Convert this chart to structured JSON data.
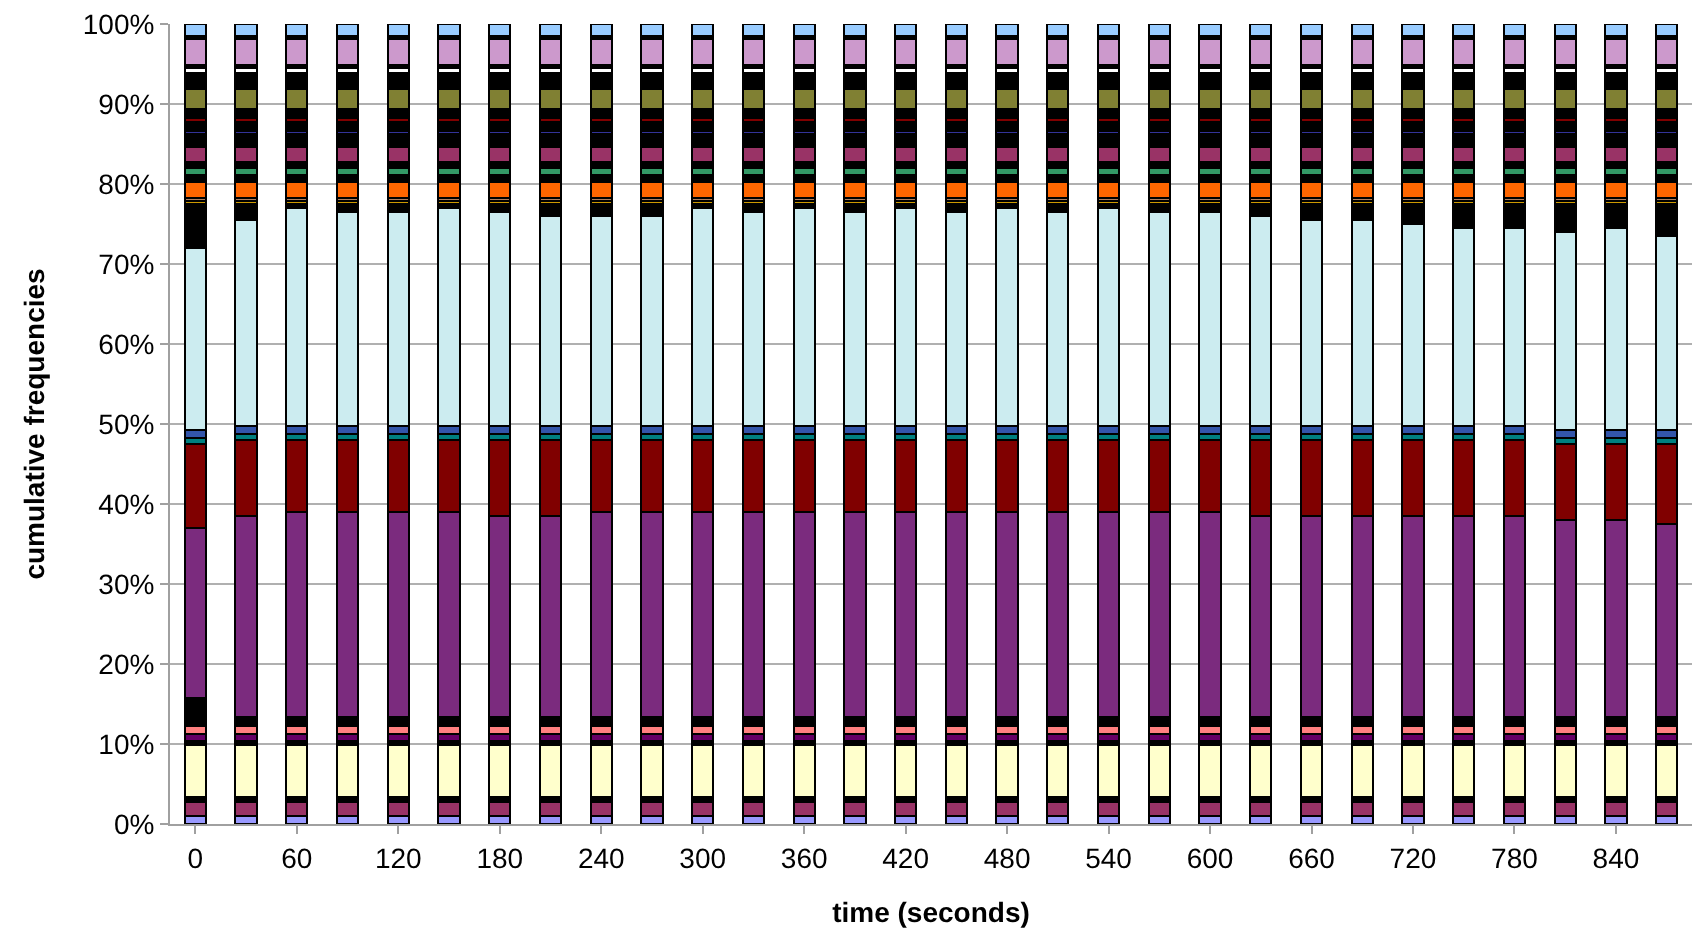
{
  "chart_data": {
    "type": "bar",
    "stacked": true,
    "xlabel": "time (seconds)",
    "ylabel": "cumulative frequencies",
    "categories": [
      "0",
      null,
      "60",
      null,
      "120",
      null,
      "180",
      null,
      "240",
      null,
      "300",
      null,
      "360",
      null,
      "420",
      null,
      "480",
      null,
      "540",
      null,
      "600",
      null,
      "660",
      null,
      "720",
      null,
      "780",
      null,
      "840",
      null
    ],
    "ylim": [
      0,
      100
    ],
    "yticks": [
      {
        "value": 0,
        "label": "0%"
      },
      {
        "value": 10,
        "label": "10%"
      },
      {
        "value": 20,
        "label": "20%"
      },
      {
        "value": 30,
        "label": "30%"
      },
      {
        "value": 40,
        "label": "40%"
      },
      {
        "value": 50,
        "label": "50%"
      },
      {
        "value": 60,
        "label": "60%"
      },
      {
        "value": 70,
        "label": "70%"
      },
      {
        "value": 80,
        "label": "80%"
      },
      {
        "value": 90,
        "label": "90%"
      },
      {
        "value": 100,
        "label": "100%"
      }
    ],
    "grid": "y",
    "series": [
      {
        "color": "#9999ff",
        "values": [
          1,
          1,
          1,
          1,
          1,
          1,
          1,
          1,
          1,
          1,
          1,
          1,
          1,
          1,
          1,
          1,
          1,
          1,
          1,
          1,
          1,
          1,
          1,
          1,
          1,
          1,
          1,
          1,
          1,
          1
        ]
      },
      {
        "color": "#993366",
        "values": [
          1.8,
          1.8,
          1.8,
          1.8,
          1.8,
          1.8,
          1.8,
          1.8,
          1.8,
          1.8,
          1.8,
          1.8,
          1.8,
          1.8,
          1.8,
          1.8,
          1.8,
          1.8,
          1.8,
          1.8,
          1.8,
          1.8,
          1.8,
          1.8,
          1.8,
          1.8,
          1.8,
          1.8,
          1.8,
          1.8
        ]
      },
      {
        "color": "#000000",
        "values": [
          0.6,
          0.6,
          0.6,
          0.6,
          0.6,
          0.6,
          0.6,
          0.6,
          0.6,
          0.6,
          0.6,
          0.6,
          0.6,
          0.6,
          0.6,
          0.6,
          0.6,
          0.6,
          0.6,
          0.6,
          0.6,
          0.6,
          0.6,
          0.6,
          0.6,
          0.6,
          0.6,
          0.6,
          0.6,
          0.6
        ]
      },
      {
        "color": "#ffffcc",
        "values": [
          6.5,
          6.5,
          6.5,
          6.5,
          6.5,
          6.5,
          6.5,
          6.5,
          6.5,
          6.5,
          6.5,
          6.5,
          6.5,
          6.5,
          6.5,
          6.5,
          6.5,
          6.5,
          6.5,
          6.5,
          6.5,
          6.5,
          6.5,
          6.5,
          6.5,
          6.5,
          6.5,
          6.5,
          6.5,
          6.5
        ]
      },
      {
        "color": "#000000",
        "values": [
          0.5,
          0.5,
          0.5,
          0.5,
          0.5,
          0.5,
          0.5,
          0.5,
          0.5,
          0.5,
          0.5,
          0.5,
          0.5,
          0.5,
          0.5,
          0.5,
          0.5,
          0.5,
          0.5,
          0.5,
          0.5,
          0.5,
          0.5,
          0.5,
          0.5,
          0.5,
          0.5,
          0.5,
          0.5,
          0.5
        ]
      },
      {
        "color": "#660066",
        "values": [
          0.8,
          0.8,
          0.8,
          0.8,
          0.8,
          0.8,
          0.8,
          0.8,
          0.8,
          0.8,
          0.8,
          0.8,
          0.8,
          0.8,
          0.8,
          0.8,
          0.8,
          0.8,
          0.8,
          0.8,
          0.8,
          0.8,
          0.8,
          0.8,
          0.8,
          0.8,
          0.8,
          0.8,
          0.8,
          0.8
        ]
      },
      {
        "color": "#ff8080",
        "values": [
          1,
          1,
          1,
          1,
          1,
          1,
          1,
          1,
          1,
          1,
          1,
          1,
          1,
          1,
          1,
          1,
          1,
          1,
          1,
          1,
          1,
          1,
          1,
          1,
          1,
          1,
          1,
          1,
          1,
          1
        ]
      },
      {
        "color": "#000000",
        "values": [
          3.6,
          1.2,
          1.2,
          1.2,
          1.2,
          1.2,
          1.2,
          1.2,
          1.2,
          1.2,
          1.2,
          1.2,
          1.2,
          1.2,
          1.2,
          1.2,
          1.2,
          1.2,
          1.2,
          1.2,
          1.2,
          1.2,
          1.2,
          1.2,
          1.2,
          1.2,
          1.2,
          1.2,
          1.2,
          1.2
        ]
      },
      {
        "color": "#7b2b7e",
        "values": [
          21.2,
          25.1,
          25.6,
          25.6,
          25.6,
          25.6,
          25.1,
          25.1,
          25.6,
          25.6,
          25.6,
          25.6,
          25.6,
          25.6,
          25.6,
          25.6,
          25.6,
          25.6,
          25.6,
          25.6,
          25.6,
          25.1,
          25.1,
          25.1,
          25.1,
          25.1,
          25.1,
          24.6,
          24.6,
          24.1
        ]
      },
      {
        "color": "#800000",
        "values": [
          10.5,
          9.5,
          9,
          9,
          9,
          9,
          9.5,
          9.5,
          9,
          9,
          9,
          9,
          9,
          9,
          9,
          9,
          9,
          9,
          9,
          9,
          9,
          9.5,
          9.5,
          9.5,
          9.5,
          9.5,
          9.5,
          9.5,
          9.5,
          10
        ]
      },
      {
        "color": "#008080",
        "values": [
          0.8,
          0.8,
          0.8,
          0.8,
          0.8,
          0.8,
          0.8,
          0.8,
          0.8,
          0.8,
          0.8,
          0.8,
          0.8,
          0.8,
          0.8,
          0.8,
          0.8,
          0.8,
          0.8,
          0.8,
          0.8,
          0.8,
          0.8,
          0.8,
          0.8,
          0.8,
          0.8,
          0.8,
          0.8,
          0.8
        ]
      },
      {
        "color": "#3355aa",
        "values": [
          1,
          1,
          1,
          1,
          1,
          1,
          1,
          1,
          1,
          1,
          1,
          1,
          1,
          1,
          1,
          1,
          1,
          1,
          1,
          1,
          1,
          1,
          1,
          1,
          1,
          1,
          1,
          1,
          1,
          1
        ]
      },
      {
        "color": "#ccecf0",
        "values": [
          22.7,
          25.7,
          27.2,
          26.7,
          26.7,
          27.2,
          26.7,
          26.2,
          26.2,
          26.2,
          27.2,
          26.7,
          27.2,
          26.7,
          27.2,
          26.7,
          27.2,
          26.7,
          27.2,
          26.7,
          26.7,
          26.2,
          25.7,
          25.7,
          25.2,
          24.7,
          24.7,
          24.7,
          25.2,
          24.2
        ]
      },
      {
        "color": "#000000",
        "values": [
          5.5,
          2,
          0.5,
          1,
          1,
          0.5,
          1,
          1.5,
          1.5,
          1.5,
          0.5,
          1,
          0.5,
          1,
          0.5,
          1,
          0.5,
          1,
          0.5,
          1,
          1,
          1.5,
          2,
          2,
          2.5,
          3,
          3,
          3.5,
          3,
          4
        ]
      },
      {
        "color": "#cc9900",
        "values": [
          0.4,
          0.4,
          0.4,
          0.4,
          0.4,
          0.4,
          0.4,
          0.4,
          0.4,
          0.4,
          0.4,
          0.4,
          0.4,
          0.4,
          0.4,
          0.4,
          0.4,
          0.4,
          0.4,
          0.4,
          0.4,
          0.4,
          0.4,
          0.4,
          0.4,
          0.4,
          0.4,
          0.4,
          0.4,
          0.4
        ]
      },
      {
        "color": "#b08060",
        "values": [
          0.4,
          0.4,
          0.4,
          0.4,
          0.4,
          0.4,
          0.4,
          0.4,
          0.4,
          0.4,
          0.4,
          0.4,
          0.4,
          0.4,
          0.4,
          0.4,
          0.4,
          0.4,
          0.4,
          0.4,
          0.4,
          0.4,
          0.4,
          0.4,
          0.4,
          0.4,
          0.4,
          0.4,
          0.4,
          0.4
        ]
      },
      {
        "color": "#ff6600",
        "values": [
          2,
          2,
          2,
          2,
          2,
          2,
          2,
          2,
          2,
          2,
          2,
          2,
          2,
          2,
          2,
          2,
          2,
          2,
          2,
          2,
          2,
          2,
          2,
          2,
          2,
          2,
          2,
          2,
          2,
          2
        ]
      },
      {
        "color": "#000000",
        "values": [
          0.8,
          0.8,
          0.8,
          0.8,
          0.8,
          0.8,
          0.8,
          0.8,
          0.8,
          0.8,
          0.8,
          0.8,
          0.8,
          0.8,
          0.8,
          0.8,
          0.8,
          0.8,
          0.8,
          0.8,
          0.8,
          0.8,
          0.8,
          0.8,
          0.8,
          0.8,
          0.8,
          0.8,
          0.8,
          0.8
        ]
      },
      {
        "color": "#339966",
        "values": [
          0.9,
          0.9,
          0.9,
          0.9,
          0.9,
          0.9,
          0.9,
          0.9,
          0.9,
          0.9,
          0.9,
          0.9,
          0.9,
          0.9,
          0.9,
          0.9,
          0.9,
          0.9,
          0.9,
          0.9,
          0.9,
          0.9,
          0.9,
          0.9,
          0.9,
          0.9,
          0.9,
          0.9,
          0.9,
          0.9
        ]
      },
      {
        "color": "#000000",
        "values": [
          0.8,
          0.8,
          0.8,
          0.8,
          0.8,
          0.8,
          0.8,
          0.8,
          0.8,
          0.8,
          0.8,
          0.8,
          0.8,
          0.8,
          0.8,
          0.8,
          0.8,
          0.8,
          0.8,
          0.8,
          0.8,
          0.8,
          0.8,
          0.8,
          0.8,
          0.8,
          0.8,
          0.8,
          0.8,
          0.8
        ]
      },
      {
        "color": "#993366",
        "values": [
          1.8,
          1.8,
          1.8,
          1.8,
          1.8,
          1.8,
          1.8,
          1.8,
          1.8,
          1.8,
          1.8,
          1.8,
          1.8,
          1.8,
          1.8,
          1.8,
          1.8,
          1.8,
          1.8,
          1.8,
          1.8,
          1.8,
          1.8,
          1.8,
          1.8,
          1.8,
          1.8,
          1.8,
          1.8,
          1.8
        ]
      },
      {
        "color": "#000000",
        "values": [
          1.6,
          1.6,
          1.6,
          1.6,
          1.6,
          1.6,
          1.6,
          1.6,
          1.6,
          1.6,
          1.6,
          1.6,
          1.6,
          1.6,
          1.6,
          1.6,
          1.6,
          1.6,
          1.6,
          1.6,
          1.6,
          1.6,
          1.6,
          1.6,
          1.6,
          1.6,
          1.6,
          1.6,
          1.6,
          1.6
        ]
      },
      {
        "color": "#333399",
        "values": [
          0.4,
          0.4,
          0.4,
          0.4,
          0.4,
          0.4,
          0.4,
          0.4,
          0.4,
          0.4,
          0.4,
          0.4,
          0.4,
          0.4,
          0.4,
          0.4,
          0.4,
          0.4,
          0.4,
          0.4,
          0.4,
          0.4,
          0.4,
          0.4,
          0.4,
          0.4,
          0.4,
          0.4,
          0.4,
          0.4
        ]
      },
      {
        "color": "#000000",
        "values": [
          1.2,
          1.2,
          1.2,
          1.2,
          1.2,
          1.2,
          1.2,
          1.2,
          1.2,
          1.2,
          1.2,
          1.2,
          1.2,
          1.2,
          1.2,
          1.2,
          1.2,
          1.2,
          1.2,
          1.2,
          1.2,
          1.2,
          1.2,
          1.2,
          1.2,
          1.2,
          1.2,
          1.2,
          1.2,
          1.2
        ]
      },
      {
        "color": "#800000",
        "values": [
          0.4,
          0.4,
          0.4,
          0.4,
          0.4,
          0.4,
          0.4,
          0.4,
          0.4,
          0.4,
          0.4,
          0.4,
          0.4,
          0.4,
          0.4,
          0.4,
          0.4,
          0.4,
          0.4,
          0.4,
          0.4,
          0.4,
          0.4,
          0.4,
          0.4,
          0.4,
          0.4,
          0.4,
          0.4,
          0.4
        ]
      },
      {
        "color": "#000000",
        "values": [
          1.2,
          1.2,
          1.2,
          1.2,
          1.2,
          1.2,
          1.2,
          1.2,
          1.2,
          1.2,
          1.2,
          1.2,
          1.2,
          1.2,
          1.2,
          1.2,
          1.2,
          1.2,
          1.2,
          1.2,
          1.2,
          1.2,
          1.2,
          1.2,
          1.2,
          1.2,
          1.2,
          1.2,
          1.2,
          1.2
        ]
      },
      {
        "color": "#808033",
        "values": [
          2.5,
          2.5,
          2.5,
          2.5,
          2.5,
          2.5,
          2.5,
          2.5,
          2.5,
          2.5,
          2.5,
          2.5,
          2.5,
          2.5,
          2.5,
          2.5,
          2.5,
          2.5,
          2.5,
          2.5,
          2.5,
          2.5,
          2.5,
          2.5,
          2.5,
          2.5,
          2.5,
          2.5,
          2.5,
          2.5
        ]
      },
      {
        "color": "#000000",
        "values": [
          2,
          2,
          2,
          2,
          2,
          2,
          2,
          2,
          2,
          2,
          2,
          2,
          2,
          2,
          2,
          2,
          2,
          2,
          2,
          2,
          2,
          2,
          2,
          2,
          2,
          2,
          2,
          2,
          2,
          2
        ]
      },
      {
        "color": "#ffffff",
        "values": [
          0.6,
          0.6,
          0.6,
          0.6,
          0.6,
          0.6,
          0.6,
          0.6,
          0.6,
          0.6,
          0.6,
          0.6,
          0.6,
          0.6,
          0.6,
          0.6,
          0.6,
          0.6,
          0.6,
          0.6,
          0.6,
          0.6,
          0.6,
          0.6,
          0.6,
          0.6,
          0.6,
          0.6,
          0.6,
          0.6
        ]
      },
      {
        "color": "#000000",
        "values": [
          0.4,
          0.4,
          0.4,
          0.4,
          0.4,
          0.4,
          0.4,
          0.4,
          0.4,
          0.4,
          0.4,
          0.4,
          0.4,
          0.4,
          0.4,
          0.4,
          0.4,
          0.4,
          0.4,
          0.4,
          0.4,
          0.4,
          0.4,
          0.4,
          0.4,
          0.4,
          0.4,
          0.4,
          0.4,
          0.4
        ]
      },
      {
        "color": "#cc99cc",
        "values": [
          3.2,
          3.2,
          3.2,
          3.2,
          3.2,
          3.2,
          3.2,
          3.2,
          3.2,
          3.2,
          3.2,
          3.2,
          3.2,
          3.2,
          3.2,
          3.2,
          3.2,
          3.2,
          3.2,
          3.2,
          3.2,
          3.2,
          3.2,
          3.2,
          3.2,
          3.2,
          3.2,
          3.2,
          3.2,
          3.2
        ]
      },
      {
        "color": "#000000",
        "values": [
          0.4,
          0.4,
          0.4,
          0.4,
          0.4,
          0.4,
          0.4,
          0.4,
          0.4,
          0.4,
          0.4,
          0.4,
          0.4,
          0.4,
          0.4,
          0.4,
          0.4,
          0.4,
          0.4,
          0.4,
          0.4,
          0.4,
          0.4,
          0.4,
          0.4,
          0.4,
          0.4,
          0.4,
          0.4,
          0.4
        ]
      },
      {
        "color": "#99ccff",
        "values": [
          1.5,
          1.5,
          1.5,
          1.5,
          1.5,
          1.5,
          1.5,
          1.5,
          1.5,
          1.5,
          1.5,
          1.5,
          1.5,
          1.5,
          1.5,
          1.5,
          1.5,
          1.5,
          1.5,
          1.5,
          1.5,
          1.5,
          1.5,
          1.5,
          1.5,
          1.5,
          1.5,
          1.5,
          1.5,
          1.5
        ]
      }
    ]
  }
}
